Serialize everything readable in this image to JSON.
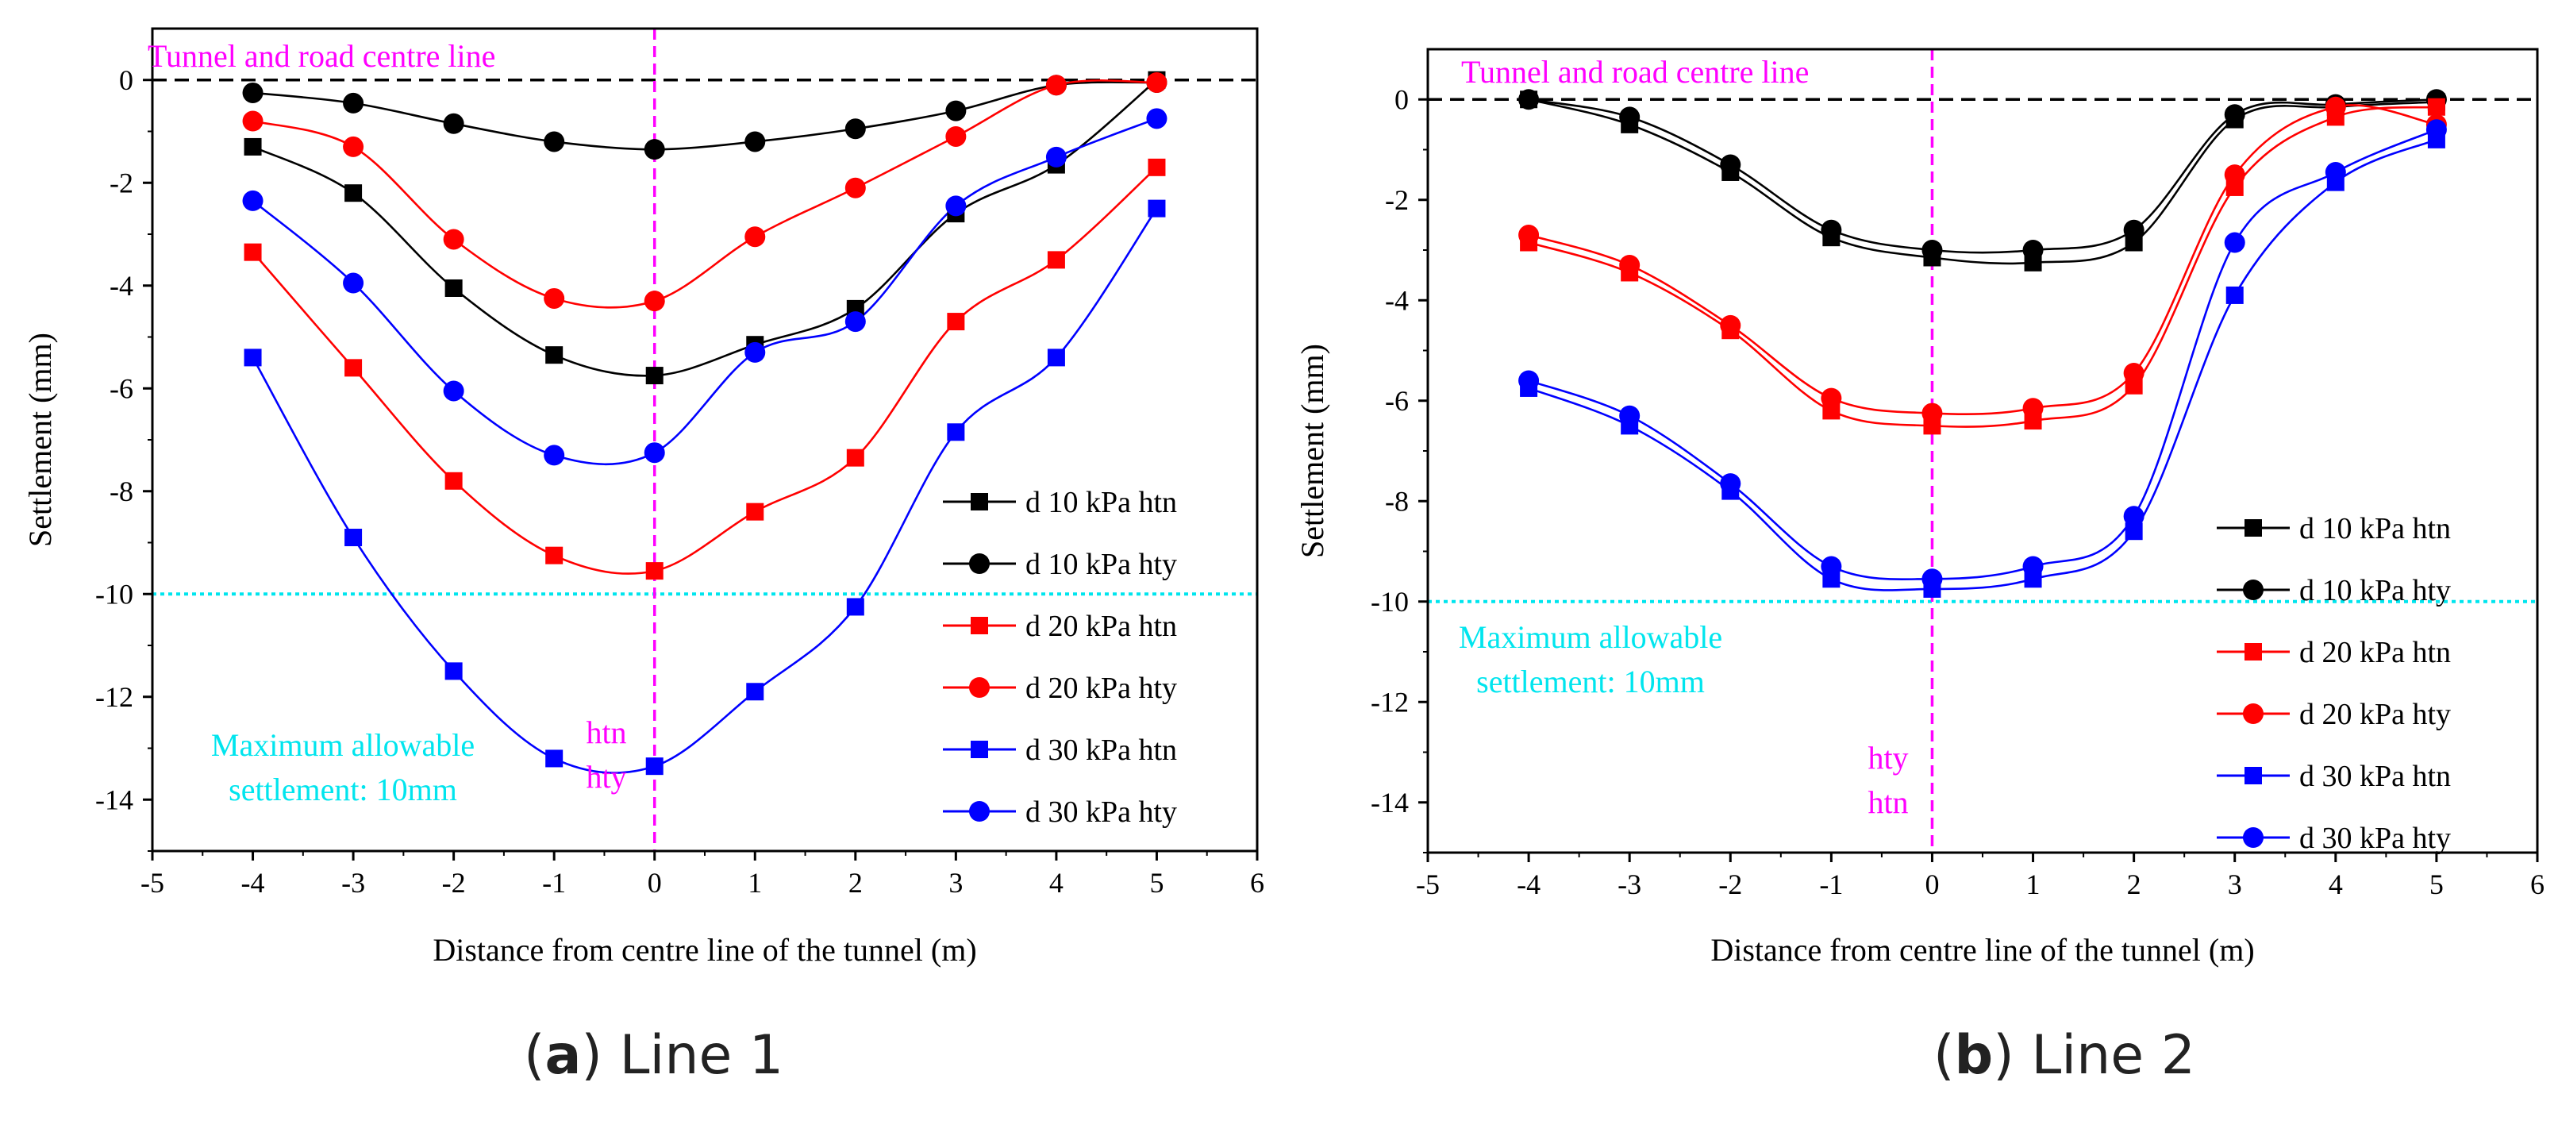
{
  "chart_data": [
    {
      "type": "line",
      "caption": {
        "letter": "a",
        "title": "Line 1"
      },
      "xlabel": "Distance from centre line of the tunnel (m)",
      "ylabel": "Settlement  (mm)",
      "xlim": [
        -5,
        6
      ],
      "ylim": [
        -15,
        1
      ],
      "xticks": [
        "-5",
        "-4",
        "-3",
        "-2",
        "-1",
        "0",
        "1",
        "2",
        "3",
        "4",
        "5",
        "6"
      ],
      "yticks": [
        "0",
        "-2",
        "-4",
        "-6",
        "-8",
        "-10",
        "-12",
        "-14"
      ],
      "x": [
        -4,
        -3,
        -2,
        -1,
        0,
        1,
        2,
        3,
        4,
        5
      ],
      "series": [
        {
          "name": "d 10 kPa htn",
          "color": "#000000",
          "marker": "square",
          "values": [
            -1.3,
            -2.2,
            -4.05,
            -5.35,
            -5.75,
            -5.15,
            -4.45,
            -2.6,
            -1.65,
            0.0
          ]
        },
        {
          "name": "d 10 kPa hty",
          "color": "#000000",
          "marker": "circle",
          "values": [
            -0.25,
            -0.45,
            -0.85,
            -1.2,
            -1.35,
            -1.2,
            -0.95,
            -0.6,
            -0.1,
            -0.05
          ]
        },
        {
          "name": "d 20 kPa htn",
          "color": "#ff0000",
          "marker": "square",
          "values": [
            -3.35,
            -5.6,
            -7.8,
            -9.25,
            -9.55,
            -8.4,
            -7.35,
            -4.7,
            -3.5,
            -1.7
          ]
        },
        {
          "name": "d 20 kPa hty",
          "color": "#ff0000",
          "marker": "circle",
          "values": [
            -0.8,
            -1.3,
            -3.1,
            -4.25,
            -4.3,
            -3.05,
            -2.1,
            -1.1,
            -0.1,
            -0.05
          ]
        },
        {
          "name": "d 30 kPa htn",
          "color": "#0000ff",
          "marker": "square",
          "values": [
            -5.4,
            -8.9,
            -11.5,
            -13.2,
            -13.35,
            -11.9,
            -10.25,
            -6.85,
            -5.4,
            -2.5
          ]
        },
        {
          "name": "d 30 kPa hty",
          "color": "#0000ff",
          "marker": "circle",
          "values": [
            -2.35,
            -3.95,
            -6.05,
            -7.3,
            -7.25,
            -5.3,
            -4.7,
            -2.45,
            -1.5,
            -0.75
          ]
        }
      ],
      "reference_lines": {
        "zero_color": "#000000",
        "limit_value": -10,
        "limit_color": "#00e5ee",
        "centre_x": 0,
        "centre_color": "#ff00ff"
      },
      "annotations": {
        "centre_label": "Tunnel and road centre line",
        "centre_tags": [
          "htn",
          "hty"
        ],
        "limit_label": [
          "Maximum allowable",
          "settlement: 10mm"
        ]
      }
    },
    {
      "type": "line",
      "caption": {
        "letter": "b",
        "title": "Line 2"
      },
      "xlabel": "Distance from centre line of the tunnel (m)",
      "ylabel": "Settlement  (mm)",
      "xlim": [
        -5,
        6
      ],
      "ylim": [
        -15,
        1
      ],
      "xticks": [
        "-5",
        "-4",
        "-3",
        "-2",
        "-1",
        "0",
        "1",
        "2",
        "3",
        "4",
        "5",
        "6"
      ],
      "yticks": [
        "0",
        "-2",
        "-4",
        "-6",
        "-8",
        "-10",
        "-12",
        "-14"
      ],
      "x": [
        -4,
        -3,
        -2,
        -1,
        0,
        1,
        2,
        3,
        4,
        5
      ],
      "series": [
        {
          "name": "d 10 kPa htn",
          "color": "#000000",
          "marker": "square",
          "values": [
            0.0,
            -0.5,
            -1.45,
            -2.75,
            -3.15,
            -3.25,
            -2.85,
            -0.4,
            -0.15,
            -0.05
          ]
        },
        {
          "name": "d 10 kPa hty",
          "color": "#000000",
          "marker": "circle",
          "values": [
            0.0,
            -0.35,
            -1.3,
            -2.6,
            -3.0,
            -3.0,
            -2.6,
            -0.3,
            -0.1,
            0.0
          ]
        },
        {
          "name": "d 20 kPa htn",
          "color": "#ff0000",
          "marker": "square",
          "values": [
            -2.85,
            -3.45,
            -4.6,
            -6.2,
            -6.5,
            -6.4,
            -5.7,
            -1.75,
            -0.35,
            -0.15
          ]
        },
        {
          "name": "d 20 kPa hty",
          "color": "#ff0000",
          "marker": "circle",
          "values": [
            -2.7,
            -3.3,
            -4.5,
            -5.95,
            -6.25,
            -6.15,
            -5.45,
            -1.5,
            -0.15,
            -0.5
          ]
        },
        {
          "name": "d 30 kPa htn",
          "color": "#0000ff",
          "marker": "square",
          "values": [
            -5.75,
            -6.5,
            -7.8,
            -9.55,
            -9.75,
            -9.55,
            -8.6,
            -3.9,
            -1.65,
            -0.8
          ]
        },
        {
          "name": "d 30 kPa hty",
          "color": "#0000ff",
          "marker": "circle",
          "values": [
            -5.6,
            -6.3,
            -7.65,
            -9.3,
            -9.55,
            -9.3,
            -8.3,
            -2.85,
            -1.45,
            -0.6
          ]
        }
      ],
      "reference_lines": {
        "zero_color": "#000000",
        "limit_value": -10,
        "limit_color": "#00e5ee",
        "centre_x": 0,
        "centre_color": "#ff00ff"
      },
      "annotations": {
        "centre_label": "Tunnel and road centre line",
        "centre_tags": [
          "hty",
          "htn"
        ],
        "limit_label": [
          "Maximum allowable",
          "settlement: 10mm"
        ]
      }
    }
  ]
}
